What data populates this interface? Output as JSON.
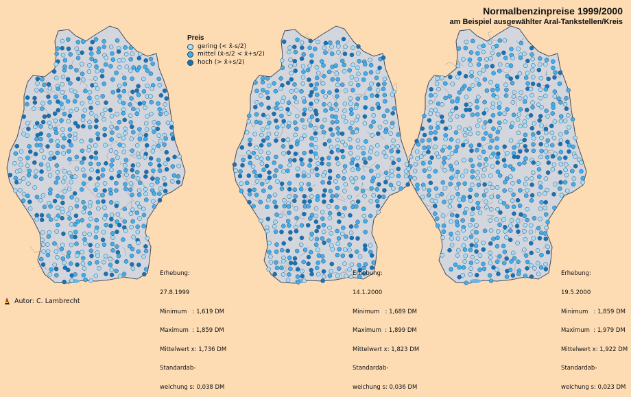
{
  "title": "Normalbenzinpreise 1999/2000",
  "subtitle": "am Beispiel ausgewählter Aral-Tankstellen/Kreis",
  "legend": {
    "title": "Preis",
    "items": [
      {
        "label": "gering (< x̄-s/2)",
        "color": "#a9ddf5"
      },
      {
        "label": "mittel (x̄-s/2 < x̄+s/2)",
        "color": "#43aeea"
      },
      {
        "label": "hoch (> x̄+s/2)",
        "color": "#1773b6"
      }
    ]
  },
  "maps": [
    {
      "survey_label": "Erhebung:",
      "date": "27.8.1999",
      "minimum": "Minimum   : 1,619 DM",
      "maximum": "Maximum  : 1,859 DM",
      "mean": "Mittelwert x: 1,736 DM",
      "stddev_label": "Standardab-",
      "stddev": "weichung s: 0,038 DM"
    },
    {
      "survey_label": "Erhebung:",
      "date": "14.1.2000",
      "minimum": "Minimum   : 1,689 DM",
      "maximum": "Maximum  : 1,899 DM",
      "mean": "Mittelwert x: 1,823 DM",
      "stddev_label": "Standardab-",
      "stddev": "weichung s: 0,036 DM"
    },
    {
      "survey_label": "Erhebung:",
      "date": "19.5.2000",
      "minimum": "Minimum   : 1,859 DM",
      "maximum": "Maximum  : 1,979 DM",
      "mean": "Mittelwert x: 1,922 DM",
      "stddev_label": "Standardab-",
      "stddev": "weichung s: 0,023 DM"
    }
  ],
  "author": "Autor: C. Lambrecht",
  "colors": {
    "background": "#fddcb4",
    "land": "#d3d6dc",
    "border": "#3f4a5a",
    "water": "#6fb3e0"
  }
}
